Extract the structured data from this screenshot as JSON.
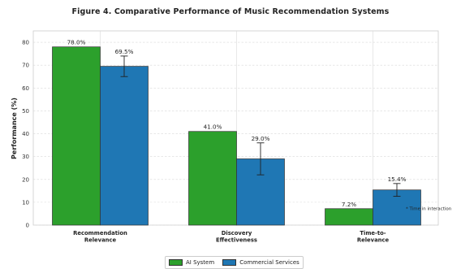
{
  "chart_data": {
    "type": "bar",
    "title": "Figure 4. Comparative Performance of Music Recommendation Systems",
    "ylabel": "Performance (%)",
    "xlabel": "",
    "ylim": [
      0,
      85
    ],
    "yticks": [
      0,
      10,
      20,
      30,
      40,
      50,
      60,
      70,
      80
    ],
    "categories": [
      [
        "Recommendation",
        "Relevance"
      ],
      [
        "Discovery",
        "Effectiveness"
      ],
      [
        "Time-to-",
        "Relevance"
      ]
    ],
    "series": [
      {
        "name": "AI System",
        "color": "#2ca02c",
        "values": [
          78.0,
          41.0,
          7.2
        ],
        "labels": [
          "78.0%",
          "41.0%",
          "7.2%"
        ]
      },
      {
        "name": "Commercial Services",
        "color": "#1f77b4",
        "values": [
          69.5,
          29.0,
          15.4
        ],
        "labels": [
          "69.5%",
          "29.0%",
          "15.4%"
        ],
        "error": [
          4.5,
          7.0,
          2.8
        ]
      }
    ],
    "annotation": "* Time in interaction",
    "grid": true,
    "legend_position": "bottom-center"
  }
}
